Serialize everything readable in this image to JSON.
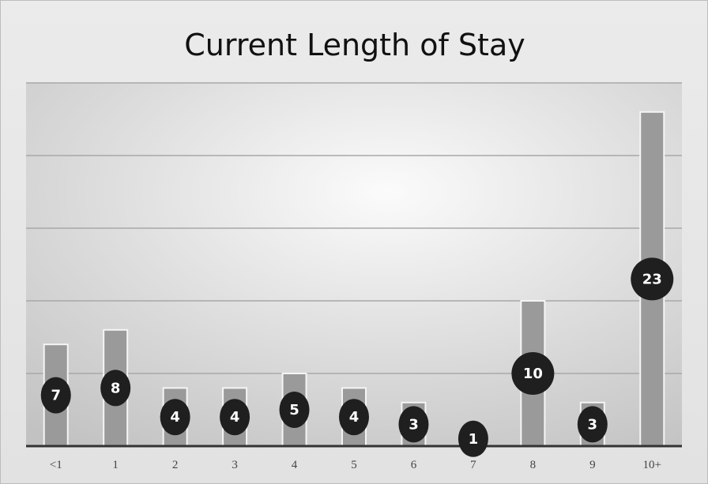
{
  "chart_data": {
    "type": "bar",
    "title": "Current Length of Stay",
    "xlabel": "",
    "ylabel": "",
    "categories": [
      "<1",
      "1",
      "2",
      "3",
      "4",
      "5",
      "6",
      "7",
      "8",
      "9",
      "10+"
    ],
    "values": [
      7,
      8,
      4,
      4,
      5,
      4,
      3,
      1,
      10,
      3,
      23
    ],
    "ylim": [
      0,
      25
    ],
    "grid": true,
    "legend": "none",
    "data_labels": true,
    "colors": {
      "bar": "#9a9a9a",
      "bar_outline": "#f5f5f5",
      "label_bubble": "#1f1f1f",
      "label_text": "#ffffff",
      "gridline": "#a8a8a8",
      "axis": "#333333"
    }
  }
}
